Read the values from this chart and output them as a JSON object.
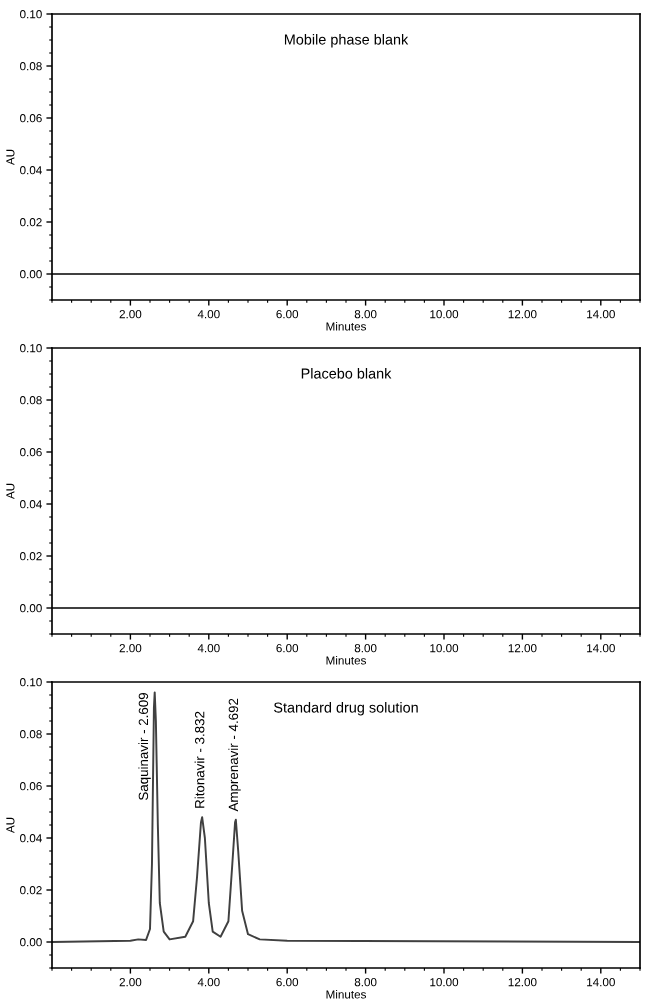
{
  "chart_data": [
    {
      "type": "line",
      "title": "Mobile phase blank",
      "xlabel": "Minutes",
      "ylabel": "AU",
      "x": [
        0,
        15
      ],
      "series": [
        {
          "color": "#404040",
          "values": [
            0,
            0
          ]
        }
      ],
      "xlim": [
        0,
        15
      ],
      "ylim": [
        -0.01,
        0.1
      ],
      "xticks": [
        {
          "value": 2,
          "label": "2.00"
        },
        {
          "value": 4,
          "label": "4.00"
        },
        {
          "value": 6,
          "label": "6.00"
        },
        {
          "value": 8,
          "label": "8.00"
        },
        {
          "value": 10,
          "label": "10.00"
        },
        {
          "value": 12,
          "label": "12.00"
        },
        {
          "value": 14,
          "label": "14.00"
        }
      ],
      "yticks": [
        {
          "value": 0,
          "label": "0.00"
        },
        {
          "value": 0.02,
          "label": "0.02"
        },
        {
          "value": 0.04,
          "label": "0.04"
        },
        {
          "value": 0.06,
          "label": "0.06"
        },
        {
          "value": 0.08,
          "label": "0.08"
        },
        {
          "value": 0.1,
          "label": "0.10"
        }
      ],
      "grid": false,
      "legend": false
    },
    {
      "type": "line",
      "title": "Placebo blank",
      "xlabel": "Minutes",
      "ylabel": "AU",
      "x": [
        0,
        15
      ],
      "series": [
        {
          "color": "#404040",
          "values": [
            0,
            0
          ]
        }
      ],
      "xlim": [
        0,
        15
      ],
      "ylim": [
        -0.01,
        0.1
      ],
      "xticks": [
        {
          "value": 2,
          "label": "2.00"
        },
        {
          "value": 4,
          "label": "4.00"
        },
        {
          "value": 6,
          "label": "6.00"
        },
        {
          "value": 8,
          "label": "8.00"
        },
        {
          "value": 10,
          "label": "10.00"
        },
        {
          "value": 12,
          "label": "12.00"
        },
        {
          "value": 14,
          "label": "14.00"
        }
      ],
      "yticks": [
        {
          "value": 0,
          "label": "0.00"
        },
        {
          "value": 0.02,
          "label": "0.02"
        },
        {
          "value": 0.04,
          "label": "0.04"
        },
        {
          "value": 0.06,
          "label": "0.06"
        },
        {
          "value": 0.08,
          "label": "0.08"
        },
        {
          "value": 0.1,
          "label": "0.10"
        }
      ],
      "grid": false,
      "legend": false
    },
    {
      "type": "line",
      "title": "Standard drug solution",
      "xlabel": "Minutes",
      "ylabel": "AU",
      "x": [
        0,
        2.0,
        2.2,
        2.4,
        2.5,
        2.55,
        2.6,
        2.62,
        2.65,
        2.7,
        2.75,
        2.85,
        3.0,
        3.4,
        3.6,
        3.7,
        3.8,
        3.83,
        3.9,
        4.0,
        4.1,
        4.3,
        4.5,
        4.6,
        4.67,
        4.69,
        4.75,
        4.85,
        5.0,
        5.3,
        6.0,
        15
      ],
      "series": [
        {
          "color": "#404040",
          "values": [
            0,
            0.0005,
            0.001,
            0.0008,
            0.005,
            0.03,
            0.09,
            0.096,
            0.085,
            0.045,
            0.015,
            0.004,
            0.001,
            0.002,
            0.008,
            0.025,
            0.046,
            0.048,
            0.04,
            0.015,
            0.004,
            0.002,
            0.008,
            0.03,
            0.046,
            0.047,
            0.035,
            0.012,
            0.003,
            0.001,
            0.0005,
            0
          ]
        }
      ],
      "annotations": [
        {
          "text": "Saquinavir - 2.609",
          "x": 2.609,
          "y": 0.096
        },
        {
          "text": "Ritonavir - 3.832",
          "x": 3.832,
          "y": 0.048
        },
        {
          "text": "Amprenavir - 4.692",
          "x": 4.692,
          "y": 0.047
        }
      ],
      "xlim": [
        0,
        15
      ],
      "ylim": [
        -0.01,
        0.1
      ],
      "xticks": [
        {
          "value": 2,
          "label": "2.00"
        },
        {
          "value": 4,
          "label": "4.00"
        },
        {
          "value": 6,
          "label": "6.00"
        },
        {
          "value": 8,
          "label": "8.00"
        },
        {
          "value": 10,
          "label": "10.00"
        },
        {
          "value": 12,
          "label": "12.00"
        },
        {
          "value": 14,
          "label": "14.00"
        }
      ],
      "yticks": [
        {
          "value": 0,
          "label": "0.00"
        },
        {
          "value": 0.02,
          "label": "0.02"
        },
        {
          "value": 0.04,
          "label": "0.04"
        },
        {
          "value": 0.06,
          "label": "0.06"
        },
        {
          "value": 0.08,
          "label": "0.08"
        },
        {
          "value": 0.1,
          "label": "0.10"
        }
      ],
      "grid": false,
      "legend": false
    }
  ]
}
